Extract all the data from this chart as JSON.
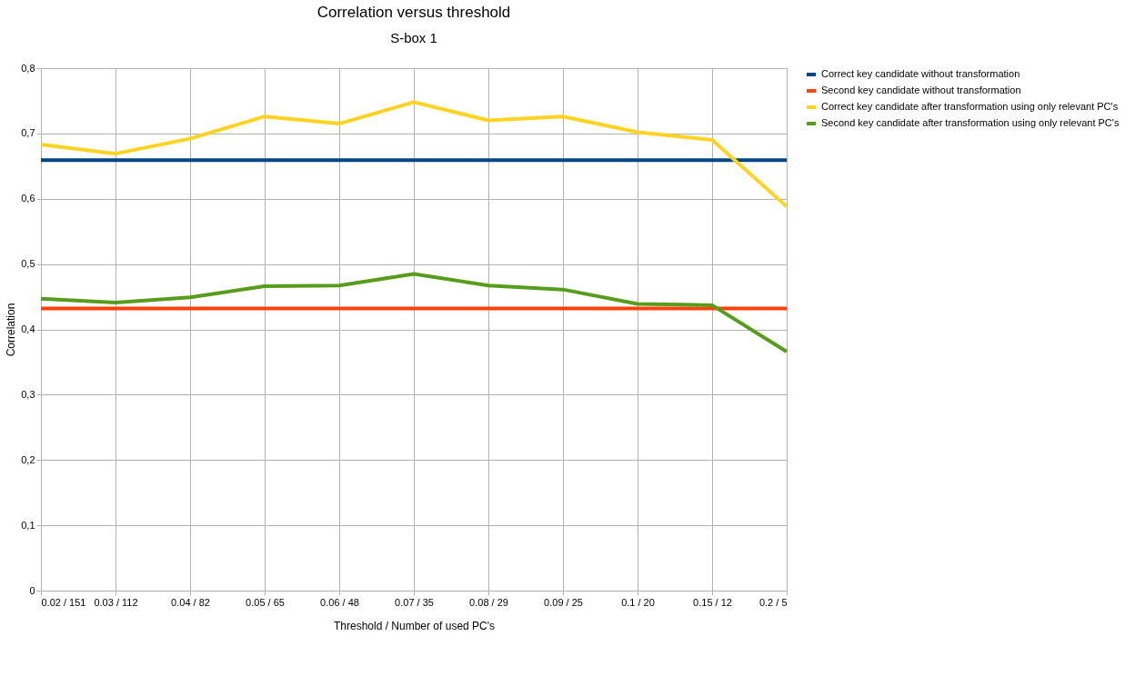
{
  "chart_data": {
    "type": "line",
    "title": "Correlation versus threshold",
    "subtitle": "S-box 1",
    "xlabel": "Threshold / Number of used PC's",
    "ylabel": "Correlation",
    "categories": [
      "0.02 / 151",
      "0.03 / 112",
      "0.04 / 82",
      "0.05 / 65",
      "0.06 / 48",
      "0.07 / 35",
      "0.08 / 29",
      "0.09 / 25",
      "0.1 / 20",
      "0.15 / 12",
      "0.2 / 5"
    ],
    "series": [
      {
        "name": "Correct key candidate without transformation",
        "color": "#004586",
        "values": [
          0.659,
          0.659,
          0.659,
          0.659,
          0.659,
          0.659,
          0.659,
          0.659,
          0.659,
          0.659,
          0.659
        ]
      },
      {
        "name": "Second key candidate without transformation",
        "color": "#ff420e",
        "values": [
          0.432,
          0.432,
          0.432,
          0.432,
          0.432,
          0.432,
          0.432,
          0.432,
          0.432,
          0.432,
          0.432
        ]
      },
      {
        "name": "Correct key candidate after transformation using only relevant PC's",
        "color": "#ffd320",
        "values": [
          0.683,
          0.669,
          0.692,
          0.726,
          0.715,
          0.748,
          0.72,
          0.726,
          0.702,
          0.69,
          0.588
        ]
      },
      {
        "name": "Second key candidate after transformation using only relevant PC's",
        "color": "#579d1c",
        "values": [
          0.447,
          0.441,
          0.449,
          0.466,
          0.467,
          0.485,
          0.467,
          0.461,
          0.439,
          0.437,
          0.366
        ]
      }
    ],
    "ylim": [
      0,
      0.8
    ],
    "yticks": [
      0,
      {
        "value": 0.1,
        "label": "0,1"
      },
      {
        "value": 0.2,
        "label": "0,2"
      },
      {
        "value": 0.3,
        "label": "0,3"
      },
      {
        "value": 0.4,
        "label": "0,4"
      },
      {
        "value": 0.5,
        "label": "0,5"
      },
      {
        "value": 0.6,
        "label": "0,6"
      },
      {
        "value": 0.7,
        "label": "0,7"
      },
      {
        "value": 0.8,
        "label": "0,8"
      }
    ],
    "grid": true,
    "legend": "right",
    "marker": "none",
    "line_style": "solid"
  }
}
